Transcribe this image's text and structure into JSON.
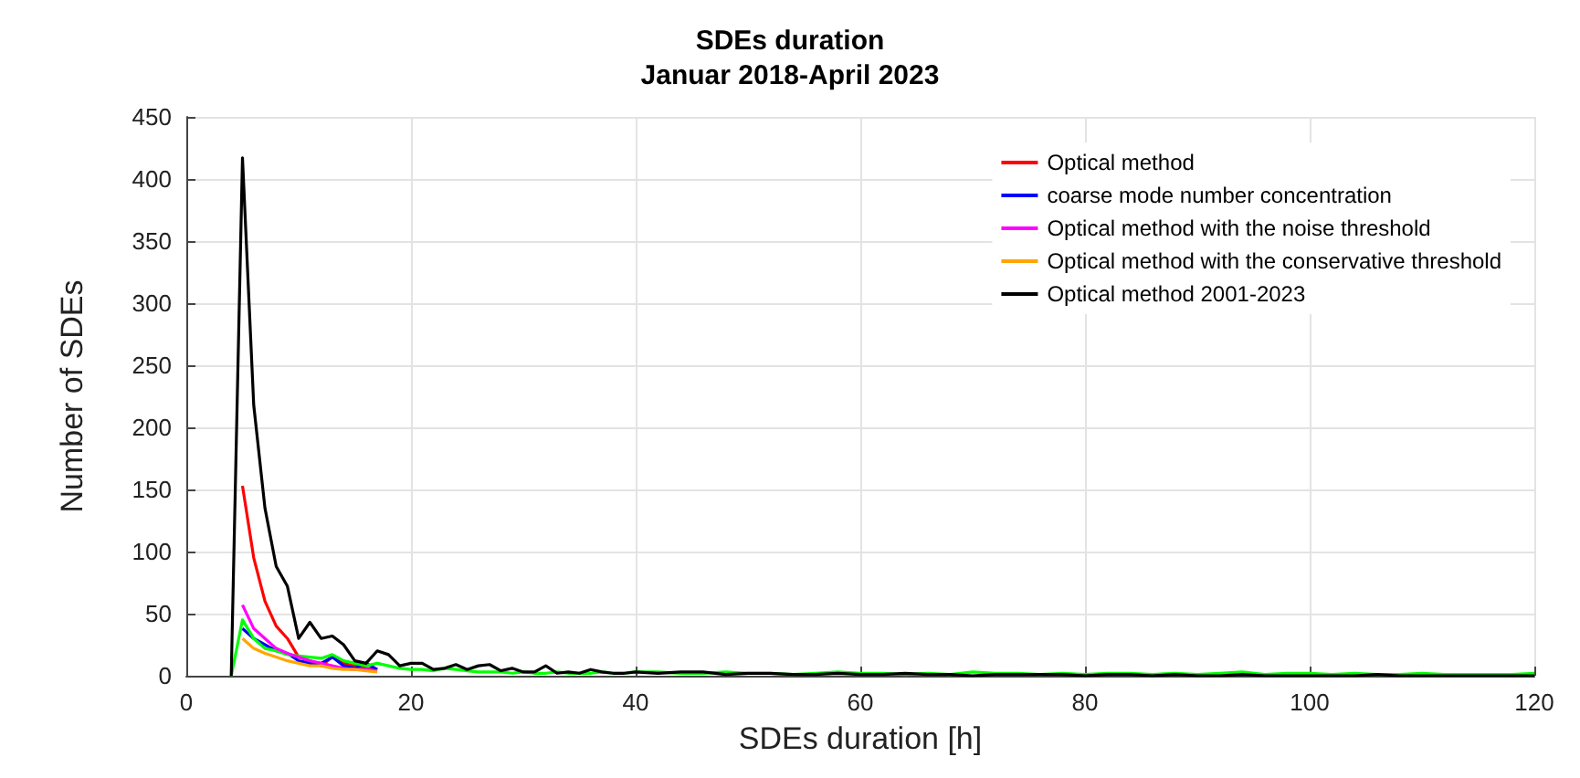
{
  "chart_data": {
    "type": "line",
    "title": "SDEs duration",
    "subtitle": "Januar 2018-April 2023",
    "xlabel": "SDEs duration [h]",
    "ylabel": "Number of SDEs",
    "x": [
      4,
      5,
      6,
      7,
      8,
      9,
      10,
      11,
      12,
      13,
      14,
      15,
      16,
      17,
      18,
      19,
      20,
      21,
      22,
      23,
      24,
      25,
      26,
      27,
      28,
      29,
      30,
      31,
      32,
      33,
      34,
      35,
      36,
      37,
      38,
      39,
      40,
      42,
      44,
      46,
      48,
      50,
      52,
      54,
      56,
      58,
      60,
      62,
      64,
      66,
      68,
      70,
      72,
      74,
      76,
      78,
      80,
      82,
      84,
      86,
      88,
      90,
      92,
      94,
      96,
      98,
      100,
      102,
      104,
      106,
      108,
      110,
      112,
      114,
      116,
      118,
      120
    ],
    "series": [
      {
        "name": "Optical method",
        "color": "#ff0000",
        "values": [
          null,
          153,
          95,
          60,
          40,
          30,
          15,
          12,
          8,
          15,
          10,
          8,
          6,
          5,
          null,
          null,
          null,
          null,
          null,
          null,
          null,
          null,
          null,
          null,
          null,
          null,
          null,
          null,
          null,
          null,
          null,
          null,
          null,
          null,
          null,
          null,
          null,
          null,
          null,
          null,
          null,
          null,
          null,
          null,
          null,
          null,
          null,
          null,
          null,
          null,
          null,
          null,
          null,
          null,
          null,
          null,
          null,
          null,
          null,
          null,
          null,
          null,
          null,
          null,
          null,
          null,
          null,
          null,
          null,
          null,
          null,
          null,
          null,
          null,
          null,
          null,
          null
        ]
      },
      {
        "name": "coarse mode number concentration",
        "color": "#0000ff",
        "values": [
          null,
          38,
          30,
          25,
          20,
          18,
          12,
          10,
          10,
          15,
          8,
          6,
          10,
          5,
          null,
          null,
          null,
          null,
          null,
          null,
          null,
          null,
          null,
          null,
          null,
          null,
          null,
          null,
          null,
          null,
          null,
          null,
          null,
          null,
          null,
          null,
          null,
          null,
          null,
          null,
          null,
          null,
          null,
          null,
          null,
          null,
          null,
          null,
          null,
          null,
          null,
          null,
          null,
          null,
          null,
          null,
          null,
          null,
          null,
          null,
          null,
          null,
          null,
          null,
          null,
          null,
          null,
          null,
          null,
          null,
          null,
          null,
          null,
          null,
          null,
          null,
          null
        ]
      },
      {
        "color": "#00ff00",
        "values": [
          0,
          45,
          30,
          22,
          20,
          17,
          16,
          15,
          14,
          17,
          12,
          10,
          8,
          10,
          8,
          6,
          5,
          5,
          4,
          6,
          5,
          4,
          3,
          3,
          3,
          2,
          3,
          2,
          2,
          3,
          2,
          2,
          2,
          3,
          2,
          2,
          3,
          3,
          2,
          2,
          3,
          2,
          2,
          1,
          2,
          3,
          2,
          2,
          1,
          2,
          1,
          3,
          2,
          2,
          1,
          2,
          1,
          2,
          2,
          1,
          2,
          1,
          2,
          3,
          1,
          2,
          2,
          1,
          2,
          1,
          1,
          2,
          1,
          1,
          1,
          1,
          2
        ]
      },
      {
        "name": "Optical method with the noise threshold",
        "color": "#ff00ff",
        "values": [
          null,
          57,
          38,
          30,
          22,
          18,
          15,
          12,
          10,
          8,
          6,
          5,
          5,
          4,
          null,
          null,
          null,
          null,
          null,
          null,
          null,
          null,
          null,
          null,
          null,
          null,
          null,
          null,
          null,
          null,
          null,
          null,
          null,
          null,
          null,
          null,
          null,
          null,
          null,
          null,
          null,
          null,
          null,
          null,
          null,
          null,
          null,
          null,
          null,
          null,
          null,
          null,
          null,
          null,
          null,
          null,
          null,
          null,
          null,
          null,
          null,
          null,
          null,
          null,
          null,
          null,
          null,
          null,
          null,
          null,
          null,
          null,
          null,
          null,
          null,
          null,
          null
        ]
      },
      {
        "name": "Optical method with the conservative threshold",
        "color": "#ffa500",
        "values": [
          null,
          30,
          22,
          18,
          15,
          12,
          10,
          8,
          8,
          6,
          5,
          5,
          4,
          3,
          null,
          null,
          null,
          null,
          null,
          null,
          null,
          null,
          null,
          null,
          null,
          null,
          null,
          null,
          null,
          null,
          null,
          null,
          null,
          null,
          null,
          null,
          null,
          null,
          null,
          null,
          null,
          null,
          null,
          null,
          null,
          null,
          null,
          null,
          null,
          null,
          null,
          null,
          null,
          null,
          null,
          null,
          null,
          null,
          null,
          null,
          null,
          null,
          null,
          null,
          null,
          null,
          null,
          null,
          null,
          null,
          null,
          null,
          null,
          null,
          null,
          null,
          null
        ]
      },
      {
        "name": "Optical method 2001-2023",
        "color": "#000000",
        "values": [
          0,
          417,
          218,
          135,
          88,
          72,
          30,
          43,
          30,
          32,
          25,
          12,
          10,
          20,
          17,
          8,
          10,
          10,
          5,
          6,
          9,
          5,
          8,
          9,
          4,
          6,
          3,
          3,
          8,
          2,
          3,
          2,
          5,
          3,
          2,
          2,
          3,
          2,
          3,
          3,
          1,
          2,
          2,
          1,
          1,
          2,
          1,
          1,
          2,
          1,
          1,
          0,
          1,
          1,
          1,
          1,
          0,
          1,
          1,
          0,
          1,
          0,
          0,
          1,
          0,
          0,
          0,
          0,
          0,
          1,
          0,
          0,
          0,
          0,
          0,
          0,
          0
        ]
      }
    ],
    "xlim": [
      0,
      120
    ],
    "xticks": [
      0,
      20,
      40,
      60,
      80,
      100,
      120
    ],
    "ylim": [
      0,
      450
    ],
    "yticks": [
      0,
      50,
      100,
      150,
      200,
      250,
      300,
      350,
      400,
      450
    ],
    "grid": true,
    "legend": "top right",
    "marker": "none",
    "line_style": "solid"
  }
}
